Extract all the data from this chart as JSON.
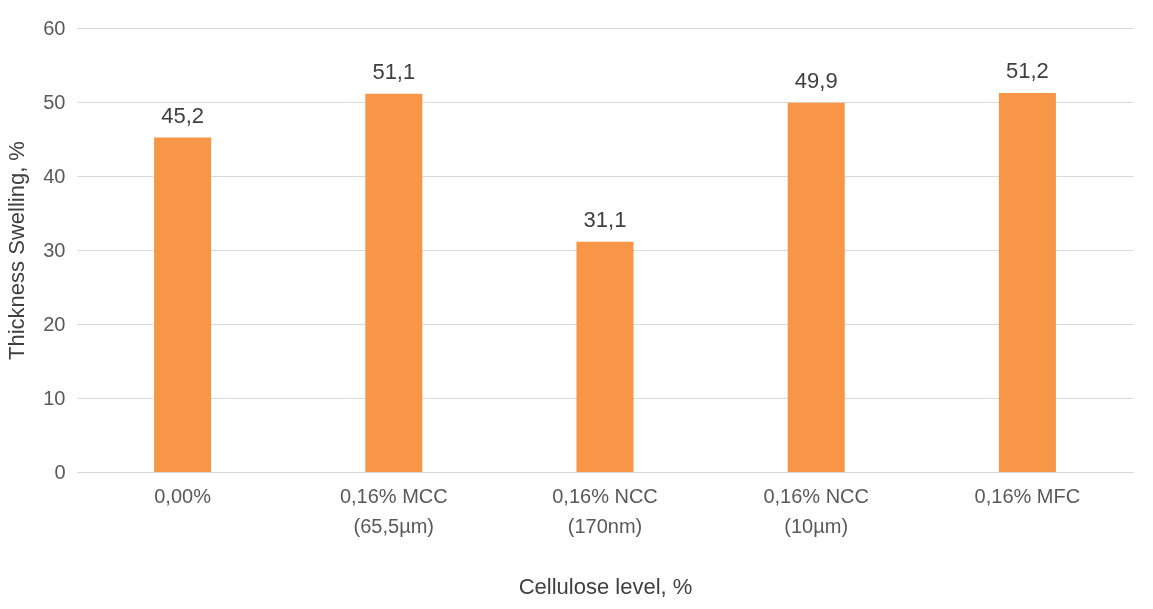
{
  "chart_data": {
    "type": "bar",
    "xlabel": "Cellulose level, %",
    "ylabel": "Thickness Swelling, %",
    "categories": [
      "0,00%",
      "0,16% MCC\n(65,5µm)",
      "0,16% NCC\n(170nm)",
      "0,16% NCC\n(10µm)",
      "0,16% MFC"
    ],
    "values": [
      45.2,
      51.1,
      31.1,
      49.9,
      51.2
    ],
    "value_labels": [
      "45,2",
      "51,1",
      "31,1",
      "49,9",
      "51,2"
    ],
    "color": "#f79646",
    "ylim": [
      0,
      60
    ],
    "yticks": [
      0,
      10,
      20,
      30,
      40,
      50,
      60
    ],
    "grid": "y"
  }
}
